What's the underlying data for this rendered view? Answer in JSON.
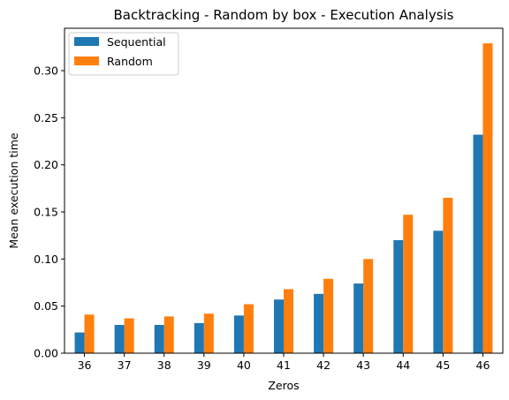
{
  "chart_data": {
    "type": "bar",
    "title": "Backtracking - Random by box - Execution Analysis",
    "xlabel": "Zeros",
    "ylabel": "Mean execution time",
    "categories": [
      "36",
      "37",
      "38",
      "39",
      "40",
      "41",
      "42",
      "43",
      "44",
      "45",
      "46"
    ],
    "series": [
      {
        "name": "Sequential",
        "color": "#1f77b4",
        "values": [
          0.022,
          0.03,
          0.03,
          0.032,
          0.04,
          0.057,
          0.063,
          0.074,
          0.12,
          0.13,
          0.232
        ]
      },
      {
        "name": "Random",
        "color": "#ff7f0e",
        "values": [
          0.041,
          0.037,
          0.039,
          0.042,
          0.052,
          0.068,
          0.079,
          0.1,
          0.147,
          0.165,
          0.329
        ]
      }
    ],
    "ylim": [
      0,
      0.345
    ],
    "yticks": [
      "0.00",
      "0.05",
      "0.10",
      "0.15",
      "0.20",
      "0.25",
      "0.30"
    ],
    "legend_position": "top-left",
    "grid": false
  }
}
